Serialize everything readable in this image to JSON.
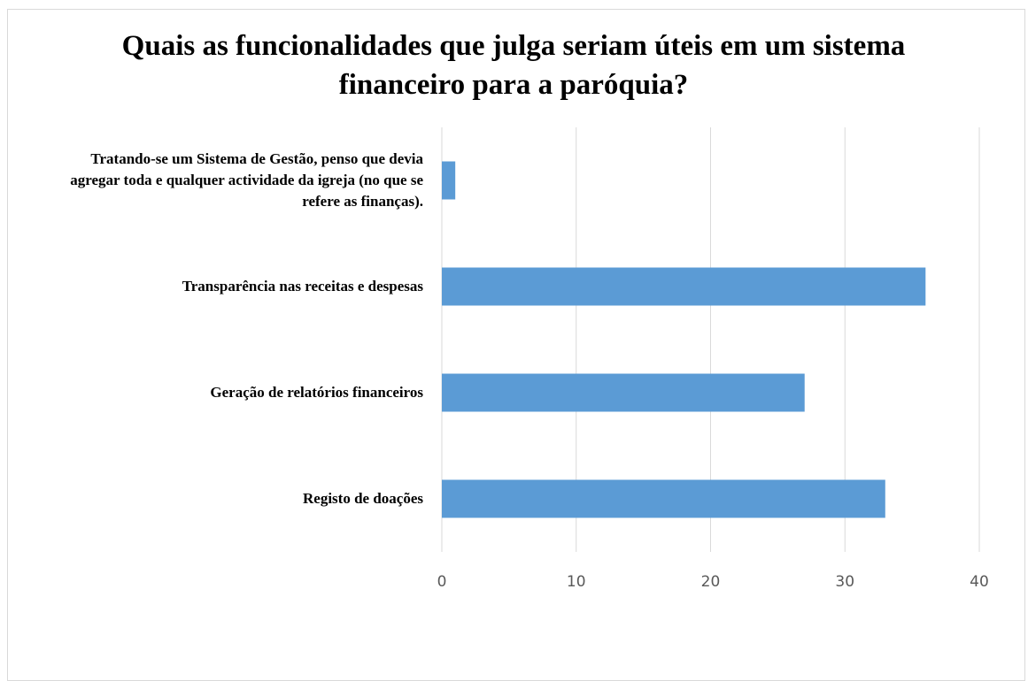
{
  "chart_data": {
    "type": "barh",
    "title": "Quais as funcionalidades que julga seriam úteis em um sistema financeiro para a paróquia?",
    "categories": [
      "Tratando-se um Sistema de Gestão, penso que devia agregar toda e qualquer actividade da igreja (no que se refere as finanças).",
      "Transparência nas receitas e despesas",
      "Geração de relatórios financeiros",
      "Registo de doações"
    ],
    "values": [
      1,
      36,
      27,
      33
    ],
    "color": "#5b9bd5",
    "xlim": [
      0,
      40
    ],
    "xticks": [
      0,
      10,
      20,
      30,
      40
    ],
    "grid": true
  }
}
